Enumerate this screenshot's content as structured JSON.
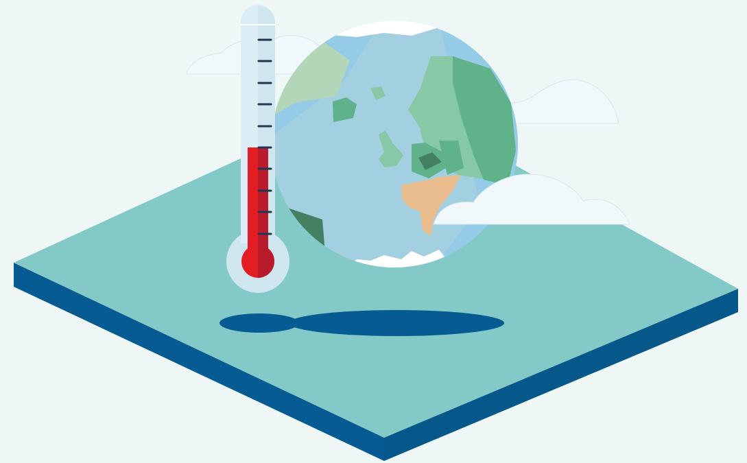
{
  "scene": {
    "subject": "thermometer-and-globe",
    "thermometer_fill_fraction": 0.55,
    "thermometer_tick_count": 10
  },
  "colors": {
    "background": "#eff7f6",
    "platform_top": "#83c9c7",
    "platform_side": "#065c92",
    "shadow": "#065c92",
    "ocean": "#a3d0e0",
    "ocean_light": "#95cbe7",
    "land_light": "#87c8a6",
    "land_mid": "#5fb28a",
    "land_dark": "#438062",
    "land_pale": "#b4d6b8",
    "desert": "#e9bc8e",
    "cloud": "#f1f8fb",
    "thermometer_glass": "#dcedf5",
    "thermometer_bulb_ring": "#cfe6ee",
    "mercury": "#e31d24",
    "mercury_shade": "#b81c2c",
    "tick": "#1f3653"
  }
}
